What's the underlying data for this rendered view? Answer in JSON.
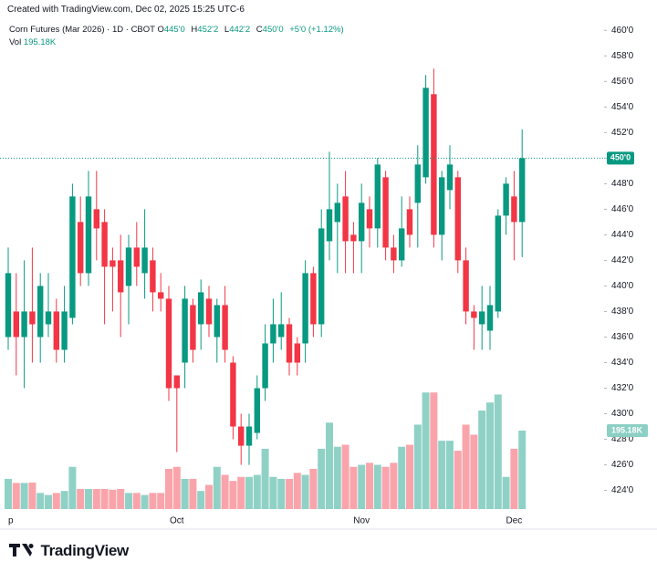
{
  "header": {
    "credit": "Created with TradingView.com, Dec 02, 2025 15:25 UTC-6"
  },
  "chart_data": {
    "type": "candlestick",
    "title": "Corn Futures (Mar 2026) · 1D · CBOT",
    "ohlc": [
      {
        "key": "O",
        "value": "445'0"
      },
      {
        "key": "H",
        "value": "452'2"
      },
      {
        "key": "L",
        "value": "442'2"
      },
      {
        "key": "C",
        "value": "450'0"
      }
    ],
    "change": "+5'0 (+1.12%)",
    "volume_name": "Vol",
    "volume_label": "195.18K",
    "last_price_label": "450'0",
    "up_color": "#089981",
    "down_color": "#f23645",
    "last_price_line": true,
    "grid": false,
    "categories": [
      "p",
      null,
      null,
      null,
      null,
      null,
      null,
      null,
      null,
      null,
      null,
      null,
      null,
      null,
      null,
      null,
      null,
      null,
      null,
      null,
      null,
      "Oct",
      null,
      null,
      null,
      null,
      null,
      null,
      null,
      null,
      null,
      null,
      null,
      null,
      null,
      null,
      null,
      null,
      null,
      null,
      null,
      null,
      null,
      null,
      "Nov",
      null,
      null,
      null,
      null,
      null,
      null,
      null,
      null,
      null,
      null,
      null,
      null,
      null,
      null,
      null,
      null,
      null,
      null,
      "Dec",
      null
    ],
    "open": [
      436,
      438,
      436,
      438,
      436,
      437,
      438,
      435,
      437.5,
      445,
      441,
      446,
      445,
      442,
      442,
      440,
      443,
      441,
      442,
      439.5,
      439,
      433,
      434,
      438.5,
      437,
      439,
      436,
      438.5,
      434,
      429,
      427.5,
      428.5,
      432,
      435.5,
      436,
      437,
      435.5,
      435.5,
      441,
      437,
      443.5,
      445,
      447,
      444,
      443.5,
      446,
      444.5,
      448.5,
      443,
      442,
      446,
      446.5,
      448.5,
      455,
      444,
      447.5,
      448.5,
      442,
      438,
      437,
      436.5,
      438,
      445.5,
      447,
      445
    ],
    "high": [
      443,
      441,
      442,
      443,
      441,
      441,
      439,
      440,
      448,
      447,
      449,
      449,
      446,
      443,
      444,
      444,
      445,
      446,
      443,
      441,
      440,
      433,
      440,
      439,
      440.5,
      440,
      439,
      440,
      434.5,
      430,
      430,
      433,
      437,
      439,
      439.5,
      437.5,
      436,
      442,
      441.5,
      446,
      450.5,
      448,
      449,
      445,
      448,
      447,
      450,
      449,
      444,
      447,
      447,
      451,
      456.5,
      457,
      449,
      451,
      449,
      443,
      438.5,
      440,
      440,
      446,
      448.5,
      449,
      452.25
    ],
    "low": [
      435,
      433,
      432,
      434,
      434,
      436,
      434,
      434,
      437,
      440,
      440,
      442,
      437,
      438,
      436,
      437,
      440,
      439,
      438,
      438,
      431,
      427,
      432,
      434,
      435,
      436,
      434,
      434,
      428,
      426,
      426,
      428,
      431,
      434,
      435,
      433,
      433,
      434,
      436,
      436,
      442,
      441,
      441,
      441,
      441,
      443,
      443,
      442,
      441,
      441.5,
      443,
      443,
      448,
      443,
      442,
      446,
      441,
      437,
      435,
      435,
      435,
      437.5,
      444,
      442,
      442.25
    ],
    "close": [
      441,
      436,
      438,
      437,
      440,
      438,
      435,
      438,
      447,
      441,
      447,
      444.5,
      441.5,
      441.5,
      439.5,
      443,
      441.5,
      443,
      439.5,
      439,
      432,
      432,
      439,
      435,
      439.5,
      437,
      438.5,
      435,
      429,
      427.5,
      429,
      432,
      435.5,
      437,
      437,
      434,
      434,
      441,
      437,
      444.5,
      446,
      446.5,
      443.5,
      443.5,
      446.5,
      444.5,
      449.5,
      443,
      442,
      444.5,
      444,
      449.5,
      455.5,
      444,
      448.5,
      449.5,
      442,
      438,
      437.5,
      438,
      438.5,
      445.5,
      448,
      445,
      450
    ],
    "volume": [
      75000,
      65000,
      65000,
      66000,
      40000,
      35000,
      40000,
      45000,
      105000,
      50000,
      50000,
      50000,
      50000,
      48000,
      50000,
      40000,
      40000,
      35000,
      40000,
      40000,
      100000,
      105000,
      75000,
      75000,
      45000,
      60000,
      105000,
      85000,
      70000,
      80000,
      80000,
      85000,
      150000,
      80000,
      75000,
      75000,
      90000,
      85000,
      100000,
      150000,
      215000,
      155000,
      160000,
      105000,
      110000,
      115000,
      110000,
      105000,
      115000,
      155000,
      160000,
      210000,
      290000,
      290000,
      170000,
      170000,
      145000,
      210000,
      185000,
      245000,
      265000,
      285000,
      80000,
      150000,
      195180
    ],
    "ylim": [
      422.4,
      461.8
    ],
    "yticks": [
      {
        "value": 460,
        "label": "460'0"
      },
      {
        "value": 458,
        "label": "458'0"
      },
      {
        "value": 456,
        "label": "456'0"
      },
      {
        "value": 454,
        "label": "454'0"
      },
      {
        "value": 452,
        "label": "452'0"
      },
      {
        "value": 450,
        "label": "450'0"
      },
      {
        "value": 448,
        "label": "448'0"
      },
      {
        "value": 446,
        "label": "446'0"
      },
      {
        "value": 444,
        "label": "444'0"
      },
      {
        "value": 442,
        "label": "442'0"
      },
      {
        "value": 440,
        "label": "440'0"
      },
      {
        "value": 438,
        "label": "438'0"
      },
      {
        "value": 436,
        "label": "436'0"
      },
      {
        "value": 434,
        "label": "434'0"
      },
      {
        "value": 432,
        "label": "432'0"
      },
      {
        "value": 430,
        "label": "430'0"
      },
      {
        "value": 428,
        "label": "428'0"
      },
      {
        "value": 426,
        "label": "426'0"
      },
      {
        "value": 424,
        "label": "424'0"
      }
    ]
  },
  "footer": {
    "logo": "TradingView"
  }
}
